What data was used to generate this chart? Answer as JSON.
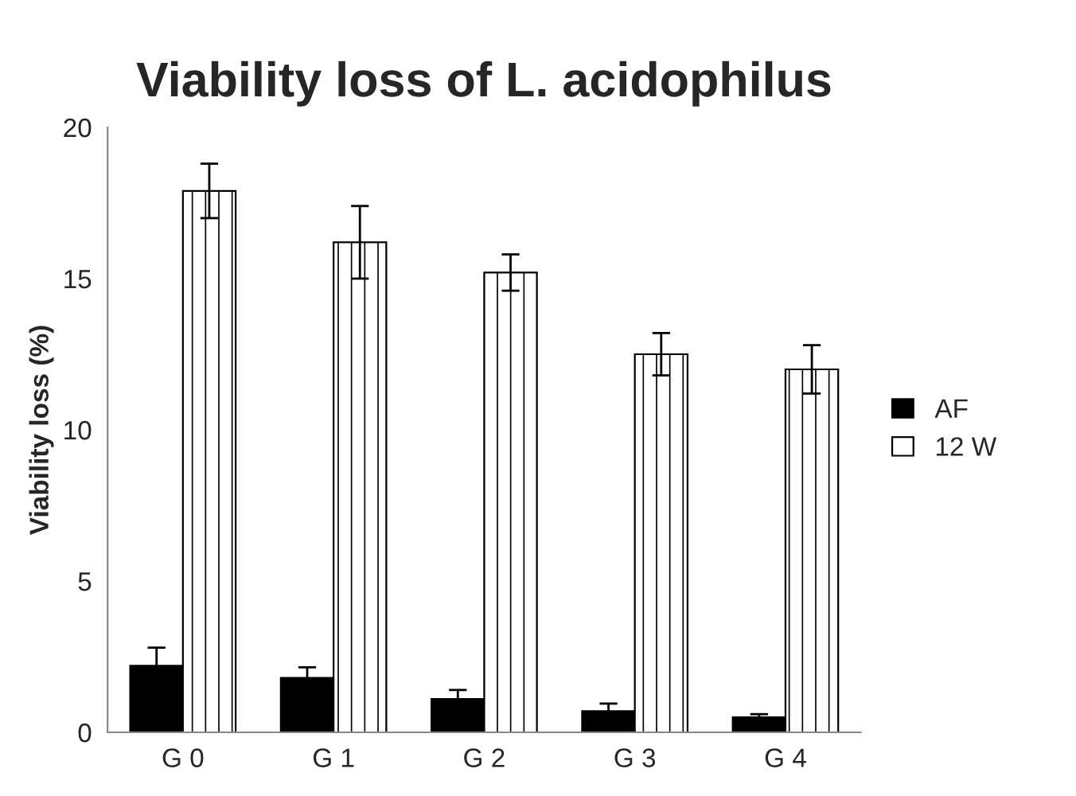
{
  "chart_data": {
    "type": "bar",
    "title": "Viability loss of L. acidophilus",
    "ylabel": "Viability loss (%)",
    "categories": [
      "G 0",
      "G 1",
      "G 2",
      "G 3",
      "G 4"
    ],
    "series": [
      {
        "name": "AF",
        "color": "#000000",
        "values": [
          2.2,
          1.8,
          1.1,
          0.7,
          0.5
        ],
        "errors": [
          0.6,
          0.35,
          0.3,
          0.25,
          0.1
        ]
      },
      {
        "name": "12 W",
        "color": "#ffffff",
        "values": [
          17.9,
          16.2,
          15.2,
          12.5,
          12.0
        ],
        "errors": [
          0.9,
          1.2,
          0.6,
          0.7,
          0.8
        ]
      }
    ],
    "ylim": [
      0,
      20
    ],
    "yticks": [
      0,
      5,
      10,
      15,
      20
    ],
    "grid": false,
    "legend": "right"
  }
}
